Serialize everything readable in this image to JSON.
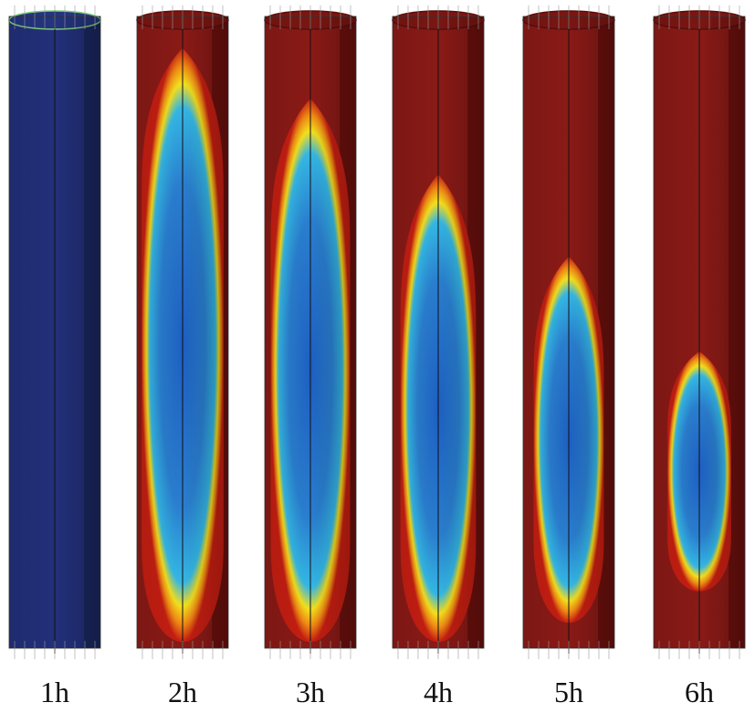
{
  "figure": {
    "panels": [
      {
        "label": "1h",
        "core_fraction": 1.0,
        "core_top": 0.0
      },
      {
        "label": "2h",
        "core_fraction": 0.94,
        "core_top": 0.05
      },
      {
        "label": "3h",
        "core_fraction": 0.86,
        "core_top": 0.13
      },
      {
        "label": "4h",
        "core_fraction": 0.74,
        "core_top": 0.25
      },
      {
        "label": "5h",
        "core_fraction": 0.58,
        "core_top": 0.38
      },
      {
        "label": "6h",
        "core_fraction": 0.38,
        "core_top": 0.53
      }
    ],
    "colors": {
      "hot": "#8a1a16",
      "hot_side": "#6b100d",
      "cold": "#22307a",
      "cold_side": "#1a2760",
      "core_center": "#1d5ec2",
      "core_edge": "#34b8e6",
      "ring_yellow": "#f4e01e",
      "ring_orange": "#f08a14",
      "ring_red": "#c61e12"
    }
  }
}
